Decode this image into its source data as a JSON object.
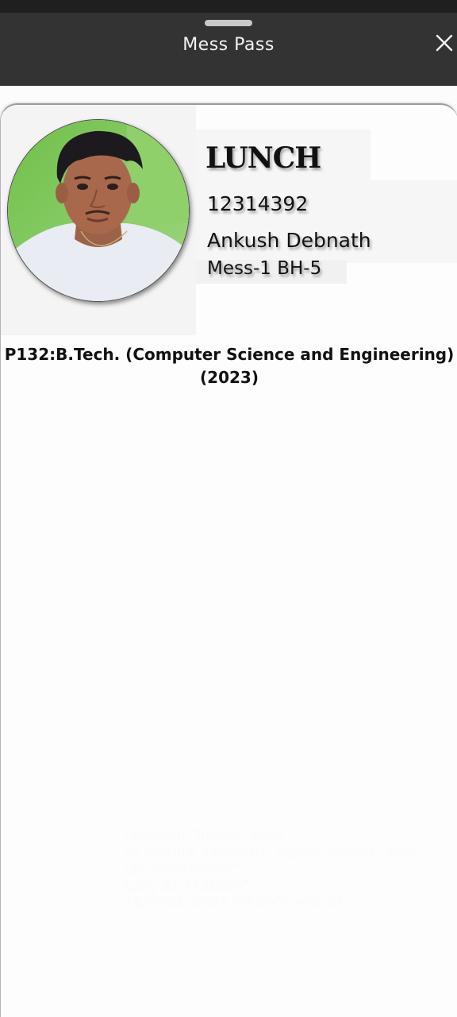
{
  "sheet": {
    "title": "Mess Pass",
    "close_icon": "close-icon"
  },
  "pass": {
    "meal": "LUNCH",
    "registration_number": "12314392",
    "student_name": "Ankush Debnath",
    "mess_hostel": "Mess-1 BH-5",
    "program_line1": "P132:B.Tech. (Computer Science and Engineering)",
    "program_line2": "(2023)",
    "photo_icon": "student-photo"
  },
  "watermark": {
    "line1": "Lalchhari, Tripura, India",
    "line2": "XF7W+FJ3, Lalchhari, Tripura 799201, India",
    "line3": "Lat 23.9483002°",
    "line4": "Long 91.7438599°",
    "line5": "16/05/24 01:25 PM GMT +05:30"
  },
  "colors": {
    "header_bg": "#333333",
    "card_bg": "#fdfdfd",
    "text": "#111111"
  }
}
